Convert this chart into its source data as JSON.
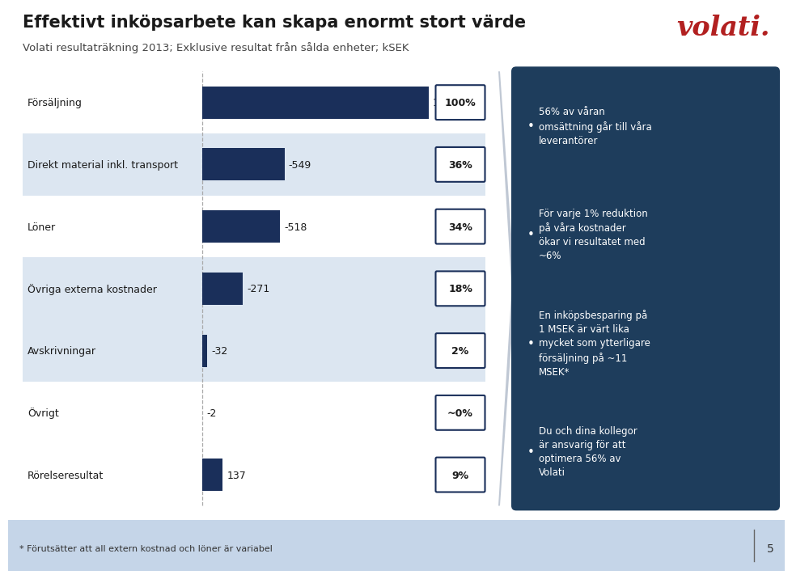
{
  "title": "Effektivt inköpsarbete kan skapa enormt stort värde",
  "subtitle": "Volati resultaträkning 2013; Exklusive resultat från sålda enheter; kSEK",
  "categories": [
    "Försäljning",
    "Direkt material inkl. transport",
    "Löner",
    "Övriga externa kostnader",
    "Avskrivningar",
    "Övrigt",
    "Rörelseresultat"
  ],
  "values": [
    1509,
    -549,
    -518,
    -271,
    -32,
    -2,
    137
  ],
  "value_labels": [
    "1,509",
    "-549",
    "-518",
    "-271",
    "-32",
    "-2",
    "137"
  ],
  "percentages": [
    "100%",
    "36%",
    "34%",
    "18%",
    "2%",
    "~0%",
    "9%"
  ],
  "bar_color": "#1a2f5a",
  "row_bg_colors": [
    "#ffffff",
    "#dce6f1",
    "#ffffff",
    "#dce6f1",
    "#dce6f1",
    "#ffffff",
    "#ffffff"
  ],
  "bullet_box_color": "#1e3d5c",
  "bullet_points": [
    "56% av våran\nomsättning går till våra\nleverantörer",
    "För varje 1% reduktion\npå våra kostnader\nökar vi resultatet med\n~6%",
    "En inköpsbesparing på\n1 MSEK är värt lika\nmycket som ytterligare\nförsäljning på ~11\nMSEK*",
    "Du och dina kollegor\när ansvarig för att\noptimera 56% av\nVolati"
  ],
  "footer_text": "* Förutsätter att all extern kostnad och löner är variabel",
  "page_number": "5",
  "footer_bg": "#c5d5e8",
  "volati_color": "#b22020",
  "chart_bg": "#ffffff",
  "max_value": 1509
}
